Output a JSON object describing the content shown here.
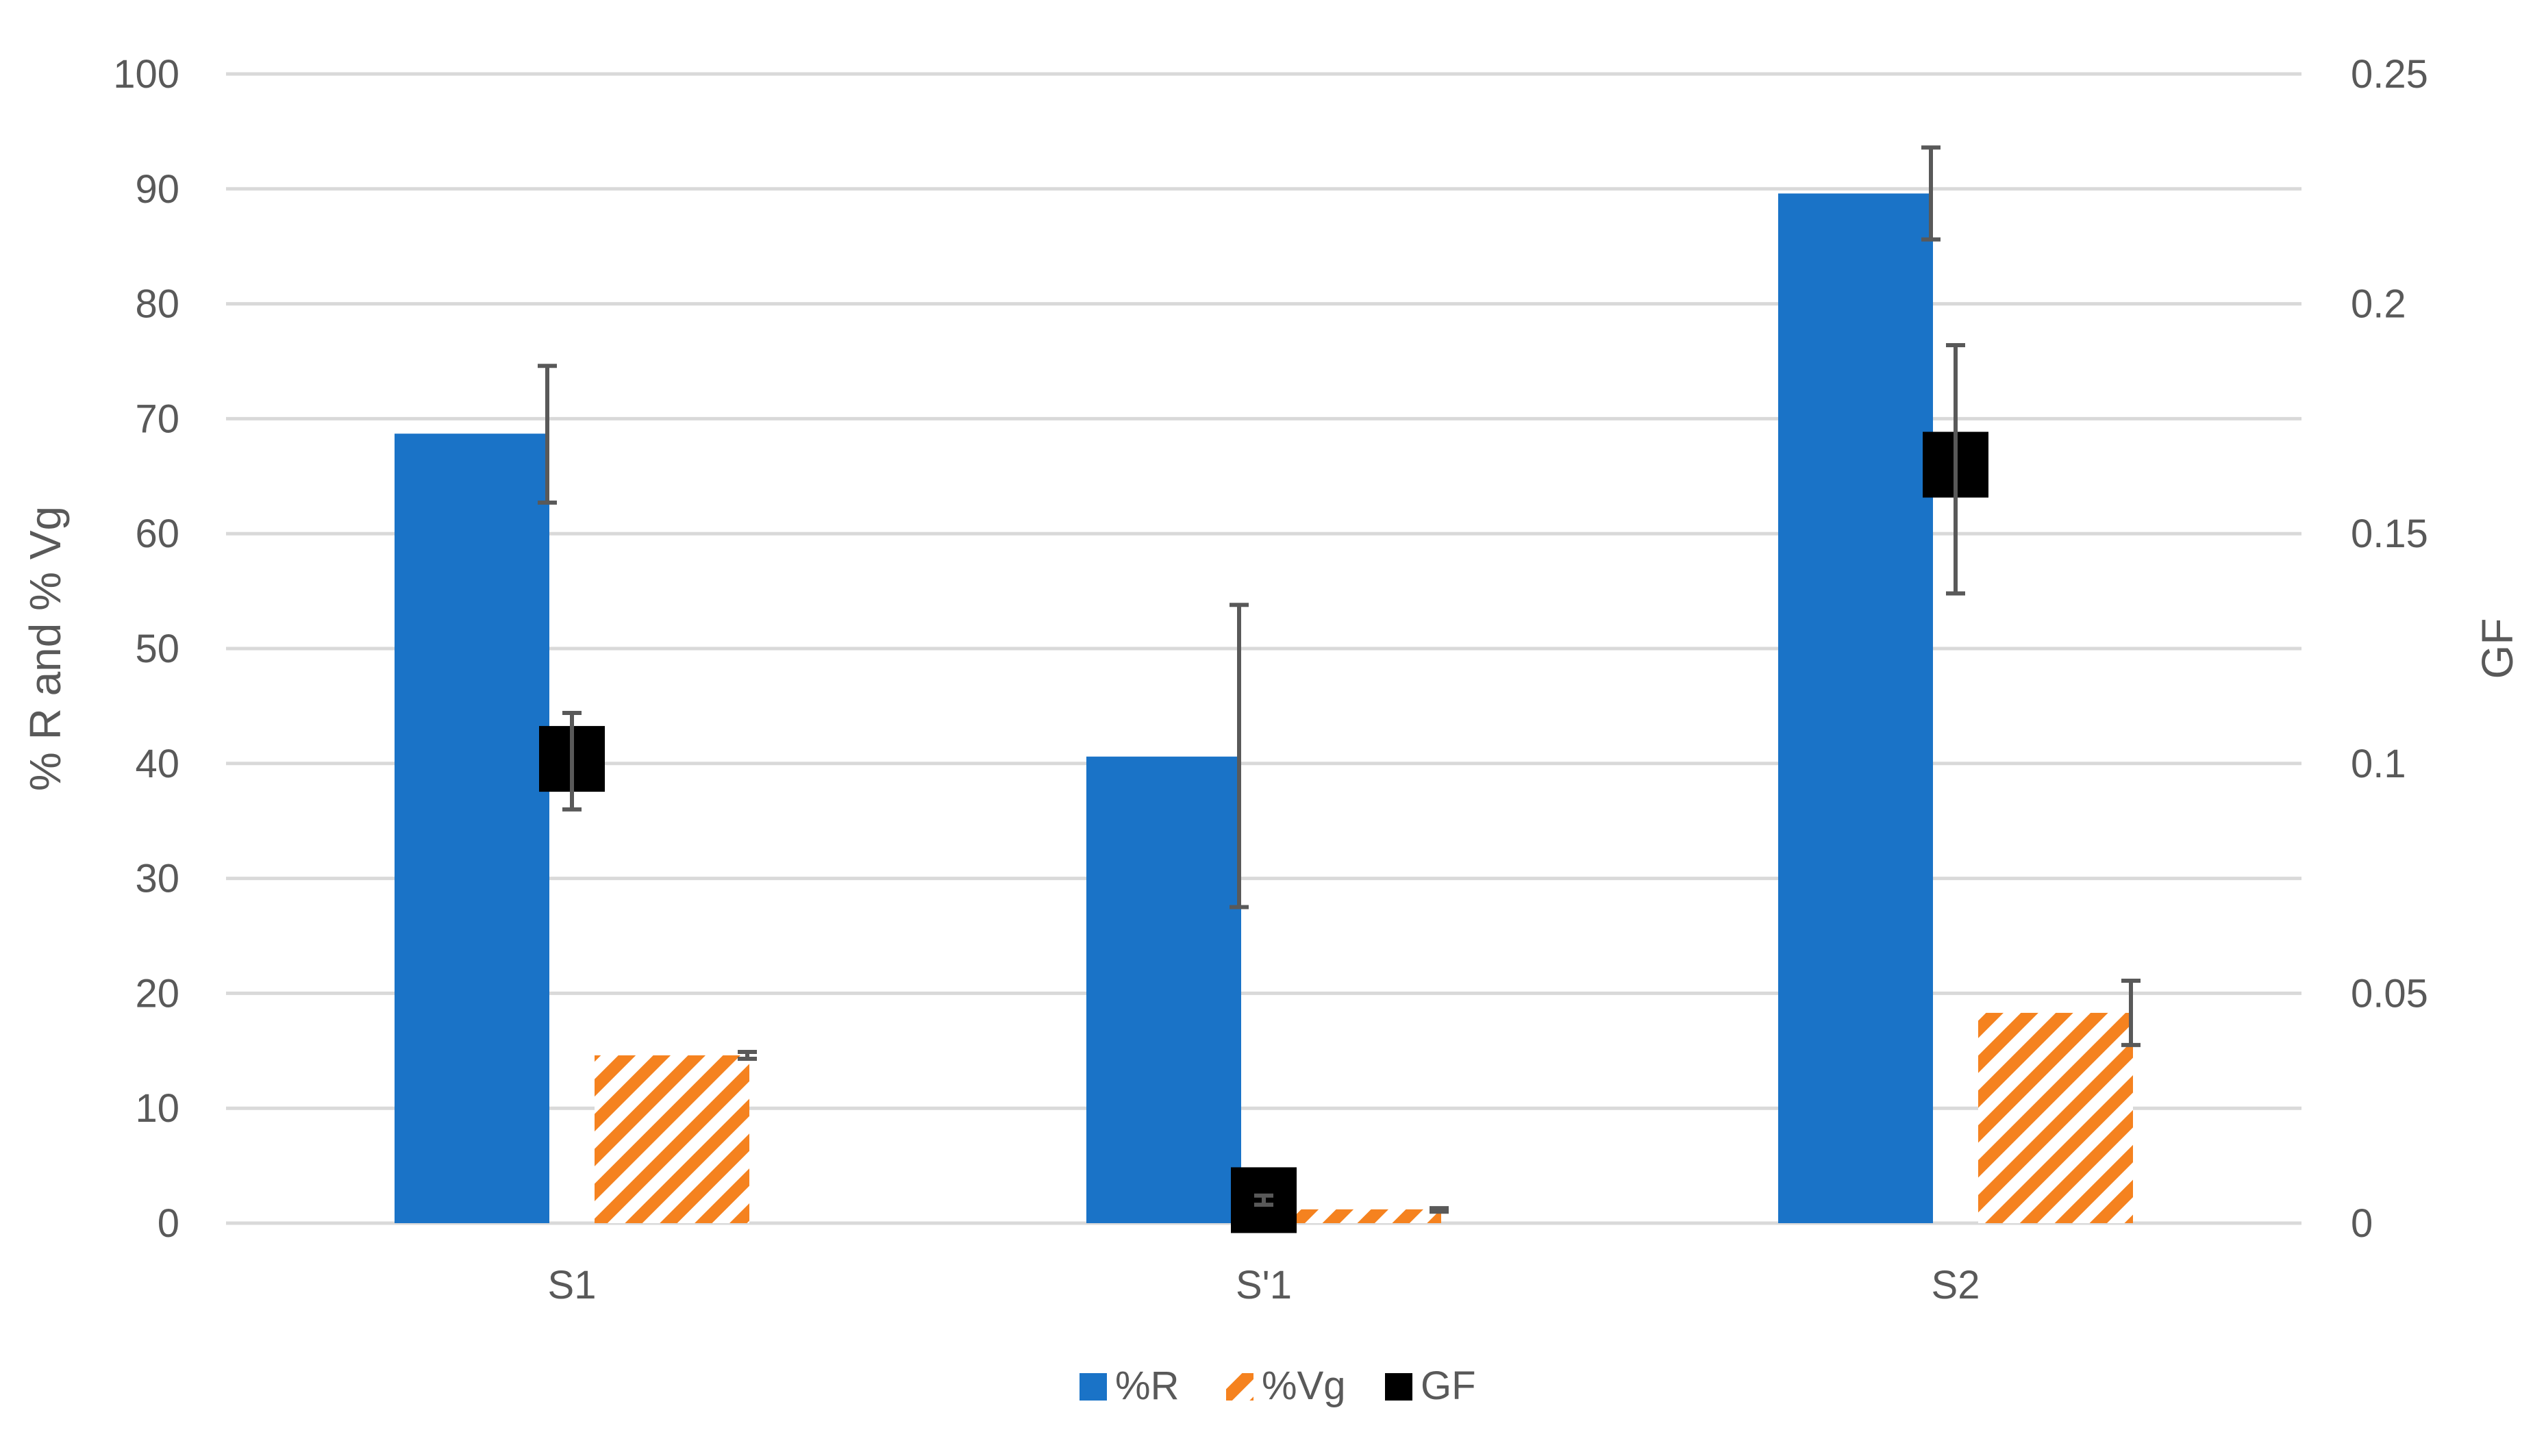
{
  "chart_data": {
    "type": "bar",
    "categories": [
      "S1",
      "S'1",
      "S2"
    ],
    "series": [
      {
        "name": "%R",
        "kind": "bar",
        "axis": "left",
        "color": "#1a73c7",
        "pattern": "solid",
        "values": [
          68.7,
          40.6,
          89.6
        ],
        "error_low": [
          62.7,
          27.5,
          85.6
        ],
        "error_high": [
          74.6,
          53.8,
          93.6
        ]
      },
      {
        "name": "%Vg",
        "kind": "bar",
        "axis": "left",
        "color": "#f5821f",
        "pattern": "diagonal-hatch",
        "values": [
          14.6,
          1.2,
          18.3
        ],
        "error_low": [
          14.3,
          1.0,
          15.5
        ],
        "error_high": [
          14.9,
          1.3,
          21.1
        ]
      },
      {
        "name": "GF",
        "kind": "marker",
        "marker": "square",
        "axis": "right",
        "color": "#000000",
        "values": [
          0.101,
          0.005,
          0.165
        ],
        "error_low": [
          0.09,
          0.004,
          0.137
        ],
        "error_high": [
          0.111,
          0.006,
          0.191
        ]
      }
    ],
    "left_axis": {
      "label": "% R and % Vg",
      "ylim": [
        0,
        100
      ],
      "ticks": [
        "0",
        "10",
        "20",
        "30",
        "40",
        "50",
        "60",
        "70",
        "80",
        "90",
        "100"
      ]
    },
    "right_axis": {
      "label": "GF",
      "ylim": [
        0,
        0.25
      ],
      "ticks": [
        "0",
        "0.05",
        "0.1",
        "0.15",
        "0.2",
        "0.25"
      ]
    },
    "xlabel": "",
    "grid": true,
    "legend_position": "bottom-center",
    "colors": {
      "grid": "#d9d9d9",
      "axis_text": "#595959",
      "error_bar": "#595959"
    }
  }
}
